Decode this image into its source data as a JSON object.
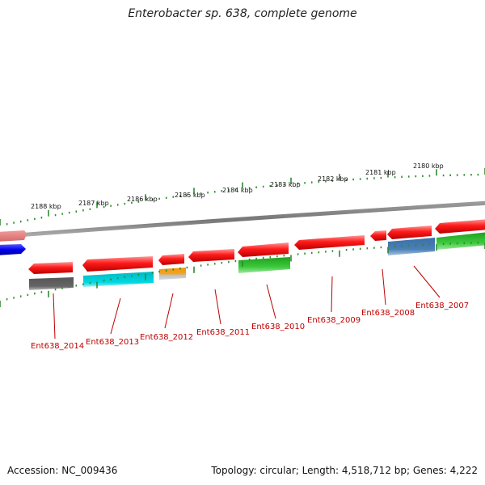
{
  "title": "Enterobacter sp. 638, complete genome",
  "accession": "Accession: NC_009436",
  "summary": "Topology: circular; Length: 4,518,712 bp; Genes: 4,222",
  "scale": {
    "labels": [
      "2188 kbp",
      "2187 kbp",
      "2186 kbp",
      "2185 kbp",
      "2184 kbp",
      "2183 kbp",
      "2182 kbp",
      "2181 kbp",
      "2180 kbp"
    ],
    "color": "#2e8b2e"
  },
  "backbone_color": "#808080",
  "genes": [
    {
      "label": "Ent638_2014",
      "color": "#ff1a1a",
      "product_color": "#666666"
    },
    {
      "label": "Ent638_2013",
      "color": "#ff1a1a",
      "product_color": "#00c8d4"
    },
    {
      "label": "Ent638_2012",
      "color": "#ff1a1a",
      "product_color": "#f0960a"
    },
    {
      "label": "Ent638_2011",
      "color": "#ff1a1a"
    },
    {
      "label": "Ent638_2010",
      "color": "#ff1a1a",
      "product_color": "#3cc83c"
    },
    {
      "label": "Ent638_2009",
      "color": "#ff1a1a"
    },
    {
      "label": "Ent638_2008",
      "color": "#ff1a1a",
      "product_color": "#4a7fb8"
    },
    {
      "label": "Ent638_2007",
      "color": "#ff1a1a",
      "product_color": "#3cc83c"
    }
  ]
}
